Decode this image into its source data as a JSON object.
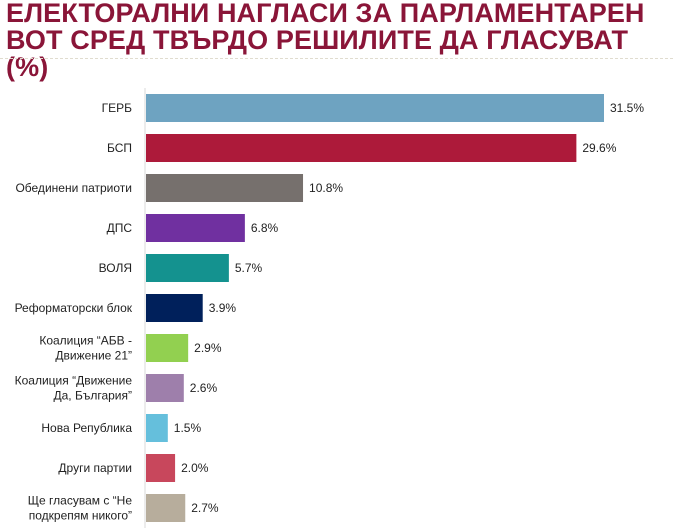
{
  "title_line1": "ЕЛЕКТОРАЛНИ НАГЛАСИ ЗА ПАРЛАМЕНТАРЕН",
  "title_line2": "ВОТ СРЕД ТВЪРДО РЕШИЛИТЕ ДА ГЛАСУВАТ (%)",
  "chart_data": {
    "type": "bar",
    "orientation": "horizontal",
    "title": "ЕЛЕКТОРАЛНИ НАГЛАСИ ЗА ПАРЛАМЕНТАРЕН ВОТ СРЕД ТВЪРДО РЕШИЛИТЕ ДА ГЛАСУВАТ (%)",
    "categories": [
      [
        "ГЕРБ"
      ],
      [
        "БСП"
      ],
      [
        "Обединени патриоти"
      ],
      [
        "ДПС"
      ],
      [
        "ВОЛЯ"
      ],
      [
        "Реформаторски блок"
      ],
      [
        "Коалиция “АБВ -",
        "Движение 21”"
      ],
      [
        "Коалиция “Движение",
        "Да, България”"
      ],
      [
        "Нова Република"
      ],
      [
        "Други партии"
      ],
      [
        "Ще гласувам с “Не",
        "подкрепям никого”"
      ]
    ],
    "values": [
      31.5,
      29.6,
      10.8,
      6.8,
      5.7,
      3.9,
      2.9,
      2.6,
      1.5,
      2.0,
      2.7
    ],
    "value_labels": [
      "31.5%",
      "29.6%",
      "10.8%",
      "6.8%",
      "5.7%",
      "3.9%",
      "2.9%",
      "2.6%",
      "1.5%",
      "2.0%",
      "2.7%"
    ],
    "colors": [
      "#6ea3c1",
      "#ad1a3a",
      "#76706d",
      "#7030a0",
      "#14928f",
      "#00205b",
      "#92d050",
      "#9e7fab",
      "#65bfdc",
      "#c8475c",
      "#b7ad9c"
    ],
    "xlim": [
      0,
      31.5
    ],
    "grid": false,
    "legend": "none"
  }
}
